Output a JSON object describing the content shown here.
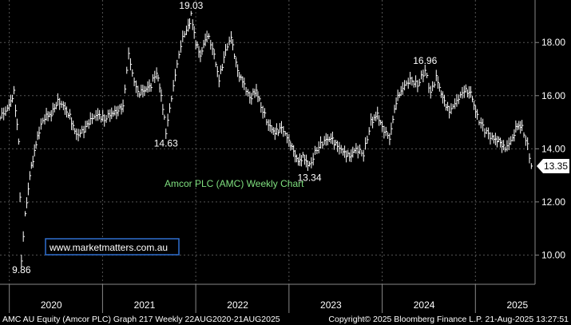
{
  "chart_data": {
    "type": "line",
    "title": "Amcor PLC (AMC) Weekly Chart",
    "ylim": [
      8.9,
      19.6
    ],
    "grid": true,
    "yticks": [
      "10.00",
      "12.00",
      "14.00",
      "16.00",
      "18.00"
    ],
    "ytick_values": [
      10,
      12,
      14,
      16,
      18
    ],
    "x_labels": [
      "2020",
      "2021",
      "2022",
      "2023",
      "2024",
      "2025"
    ],
    "x_label_years": [
      2020.45,
      2021.45,
      2022.45,
      2023.45,
      2024.45,
      2025.45
    ],
    "x_range": [
      2019.9,
      2025.64
    ],
    "last_price": "13.35",
    "last_price_value": 13.35,
    "annotations": [
      {
        "label": "19.03",
        "x": 2021.95,
        "y": 19.03
      },
      {
        "label": "9.86",
        "x": 2020.13,
        "y": 9.86
      },
      {
        "label": "14.63",
        "x": 2021.68,
        "y": 14.63
      },
      {
        "label": "13.34",
        "x": 2023.22,
        "y": 13.34
      },
      {
        "label": "16.96",
        "x": 2024.46,
        "y": 16.96
      }
    ],
    "series": [
      {
        "x": [
          2019.9,
          2019.98,
          2020.05,
          2020.1,
          2020.13,
          2020.17,
          2020.22,
          2020.27,
          2020.32,
          2020.38,
          2020.45,
          2020.52,
          2020.58,
          2020.65,
          2020.72,
          2020.8,
          2020.87,
          2020.95,
          2021.02,
          2021.08,
          2021.15,
          2021.22,
          2021.28,
          2021.32,
          2021.38,
          2021.45,
          2021.52,
          2021.58,
          2021.63,
          2021.68,
          2021.72,
          2021.8,
          2021.86,
          2021.92,
          2021.95,
          2022.0,
          2022.05,
          2022.12,
          2022.18,
          2022.25,
          2022.32,
          2022.38,
          2022.45,
          2022.52,
          2022.58,
          2022.65,
          2022.7,
          2022.78,
          2022.85,
          2022.92,
          2023.0,
          2023.05,
          2023.1,
          2023.15,
          2023.22,
          2023.3,
          2023.38,
          2023.45,
          2023.52,
          2023.58,
          2023.65,
          2023.72,
          2023.8,
          2023.88,
          2023.95,
          2024.0,
          2024.08,
          2024.15,
          2024.22,
          2024.3,
          2024.38,
          2024.46,
          2024.52,
          2024.58,
          2024.65,
          2024.72,
          2024.8,
          2024.88,
          2024.95,
          2025.02,
          2025.1,
          2025.18,
          2025.25,
          2025.32,
          2025.4,
          2025.45,
          2025.5,
          2025.56,
          2025.6
        ],
        "y": [
          15.2,
          15.5,
          16.1,
          14.3,
          9.86,
          11.5,
          13.0,
          13.9,
          14.7,
          15.2,
          15.3,
          15.8,
          15.6,
          15.2,
          14.5,
          14.7,
          15.1,
          15.3,
          15.1,
          15.3,
          15.4,
          15.6,
          17.6,
          16.8,
          16.1,
          16.2,
          16.4,
          16.9,
          16.0,
          14.63,
          15.5,
          17.2,
          18.2,
          18.6,
          19.03,
          18.0,
          17.5,
          18.3,
          17.8,
          16.6,
          17.7,
          18.2,
          16.9,
          16.4,
          15.9,
          16.2,
          15.6,
          14.9,
          14.6,
          14.8,
          14.3,
          13.9,
          13.5,
          13.7,
          13.34,
          14.0,
          14.3,
          14.4,
          14.1,
          13.9,
          13.7,
          14.0,
          13.8,
          15.0,
          15.3,
          14.8,
          14.4,
          15.8,
          16.3,
          16.6,
          16.4,
          16.96,
          16.1,
          16.7,
          15.9,
          15.4,
          15.8,
          16.2,
          16.1,
          15.2,
          14.7,
          14.4,
          14.3,
          14.0,
          14.4,
          14.9,
          14.8,
          14.1,
          13.35
        ]
      }
    ]
  },
  "caption": "Amcor PLC (AMC) Weekly Chart",
  "watermark": "www.marketmatters.com.au",
  "footer": {
    "left": "AMC AU Equity (Amcor PLC) Graph 217  Weekly 22AUG2020-21AUG2025",
    "right": "Copyright© 2025 Bloomberg Finance L.P.   21-Aug-2025 13:27:51"
  },
  "colors": {
    "background": "#000000",
    "grid": "#555555",
    "price": "#ffffff",
    "caption": "#7fe07f",
    "watermark_border": "#2f6fd0",
    "last_price_label": "#ffffff"
  }
}
